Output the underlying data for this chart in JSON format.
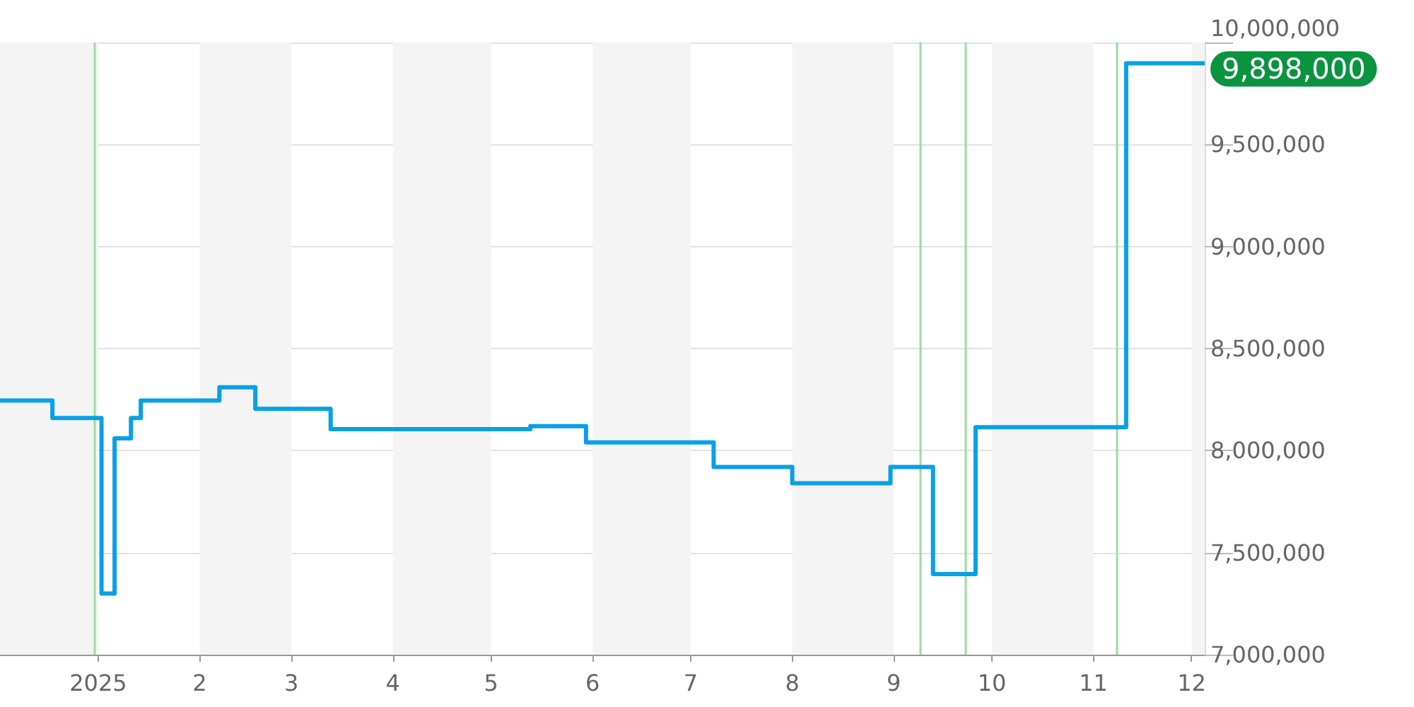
{
  "chart_data": {
    "type": "step",
    "x": [
      "2024-12-02",
      "2024-12-18",
      "2025-01-02",
      "2025-01-06",
      "2025-01-11",
      "2025-01-14",
      "2025-02-07",
      "2025-02-18",
      "2025-03-13",
      "2025-05-13",
      "2025-05-30",
      "2025-07-08",
      "2025-08-01",
      "2025-08-31",
      "2025-09-13",
      "2025-09-26",
      "2025-11-11",
      "2025-12-05"
    ],
    "series": [
      {
        "color": "#08a0e6",
        "values": [
          8245000,
          8160000,
          7300000,
          8060000,
          8160000,
          8245000,
          8310000,
          8205000,
          8105000,
          8120000,
          8040000,
          7920000,
          7840000,
          7920000,
          7395000,
          8115000,
          9898000,
          9898000
        ]
      }
    ],
    "xlim": [
      "2024-12-02",
      "2025-12-05"
    ],
    "xticks": [
      {
        "value": "2025-01-01",
        "label": "2025"
      },
      {
        "value": "2025-02-01",
        "label": "2"
      },
      {
        "value": "2025-03-01",
        "label": "3"
      },
      {
        "value": "2025-04-01",
        "label": "4"
      },
      {
        "value": "2025-05-01",
        "label": "5"
      },
      {
        "value": "2025-06-01",
        "label": "6"
      },
      {
        "value": "2025-07-01",
        "label": "7"
      },
      {
        "value": "2025-08-01",
        "label": "8"
      },
      {
        "value": "2025-09-01",
        "label": "9"
      },
      {
        "value": "2025-10-01",
        "label": "10"
      },
      {
        "value": "2025-11-01",
        "label": "11"
      },
      {
        "value": "2025-12-01",
        "label": "12"
      }
    ],
    "ylim": [
      7000000,
      10000000
    ],
    "yticks": [
      {
        "value": 7000000,
        "label": "7,000,000"
      },
      {
        "value": 7500000,
        "label": "7,500,000"
      },
      {
        "value": 8000000,
        "label": "8,000,000"
      },
      {
        "value": 8500000,
        "label": "8,500,000"
      },
      {
        "value": 9000000,
        "label": "9,000,000"
      },
      {
        "value": 9500000,
        "label": "9,500,000"
      },
      {
        "value": 10000000,
        "label": "10,000,000"
      }
    ],
    "annotations": [
      {
        "text": "9,898,000",
        "x": "2025-12-05",
        "y": 9898000
      }
    ],
    "bands": [
      {
        "axis": "x",
        "from": "2024-12-02",
        "to": "2025-01-01",
        "color": "#f4f4f4"
      },
      {
        "axis": "x",
        "from": "2025-02-01",
        "to": "2025-03-01",
        "color": "#f4f4f4"
      },
      {
        "axis": "x",
        "from": "2025-04-01",
        "to": "2025-05-01",
        "color": "#f4f4f4"
      },
      {
        "axis": "x",
        "from": "2025-06-01",
        "to": "2025-07-01",
        "color": "#f4f4f4"
      },
      {
        "axis": "x",
        "from": "2025-08-01",
        "to": "2025-09-01",
        "color": "#f4f4f4"
      },
      {
        "axis": "x",
        "from": "2025-10-01",
        "to": "2025-11-01",
        "color": "#f4f4f4"
      },
      {
        "axis": "x",
        "from": "2025-12-01",
        "to": "2025-12-05",
        "color": "#f4f4f4"
      }
    ],
    "ref_lines": [
      {
        "axis": "x",
        "value": "2024-12-31",
        "color": "#9ddc9d"
      },
      {
        "axis": "x",
        "value": "2025-09-09",
        "color": "#9ddc9d"
      },
      {
        "axis": "x",
        "value": "2025-09-23",
        "color": "#9ddc9d"
      },
      {
        "axis": "x",
        "value": "2025-11-08",
        "color": "#9ddc9d"
      }
    ],
    "grid": "y",
    "marker": "none",
    "line_style": "solid"
  }
}
